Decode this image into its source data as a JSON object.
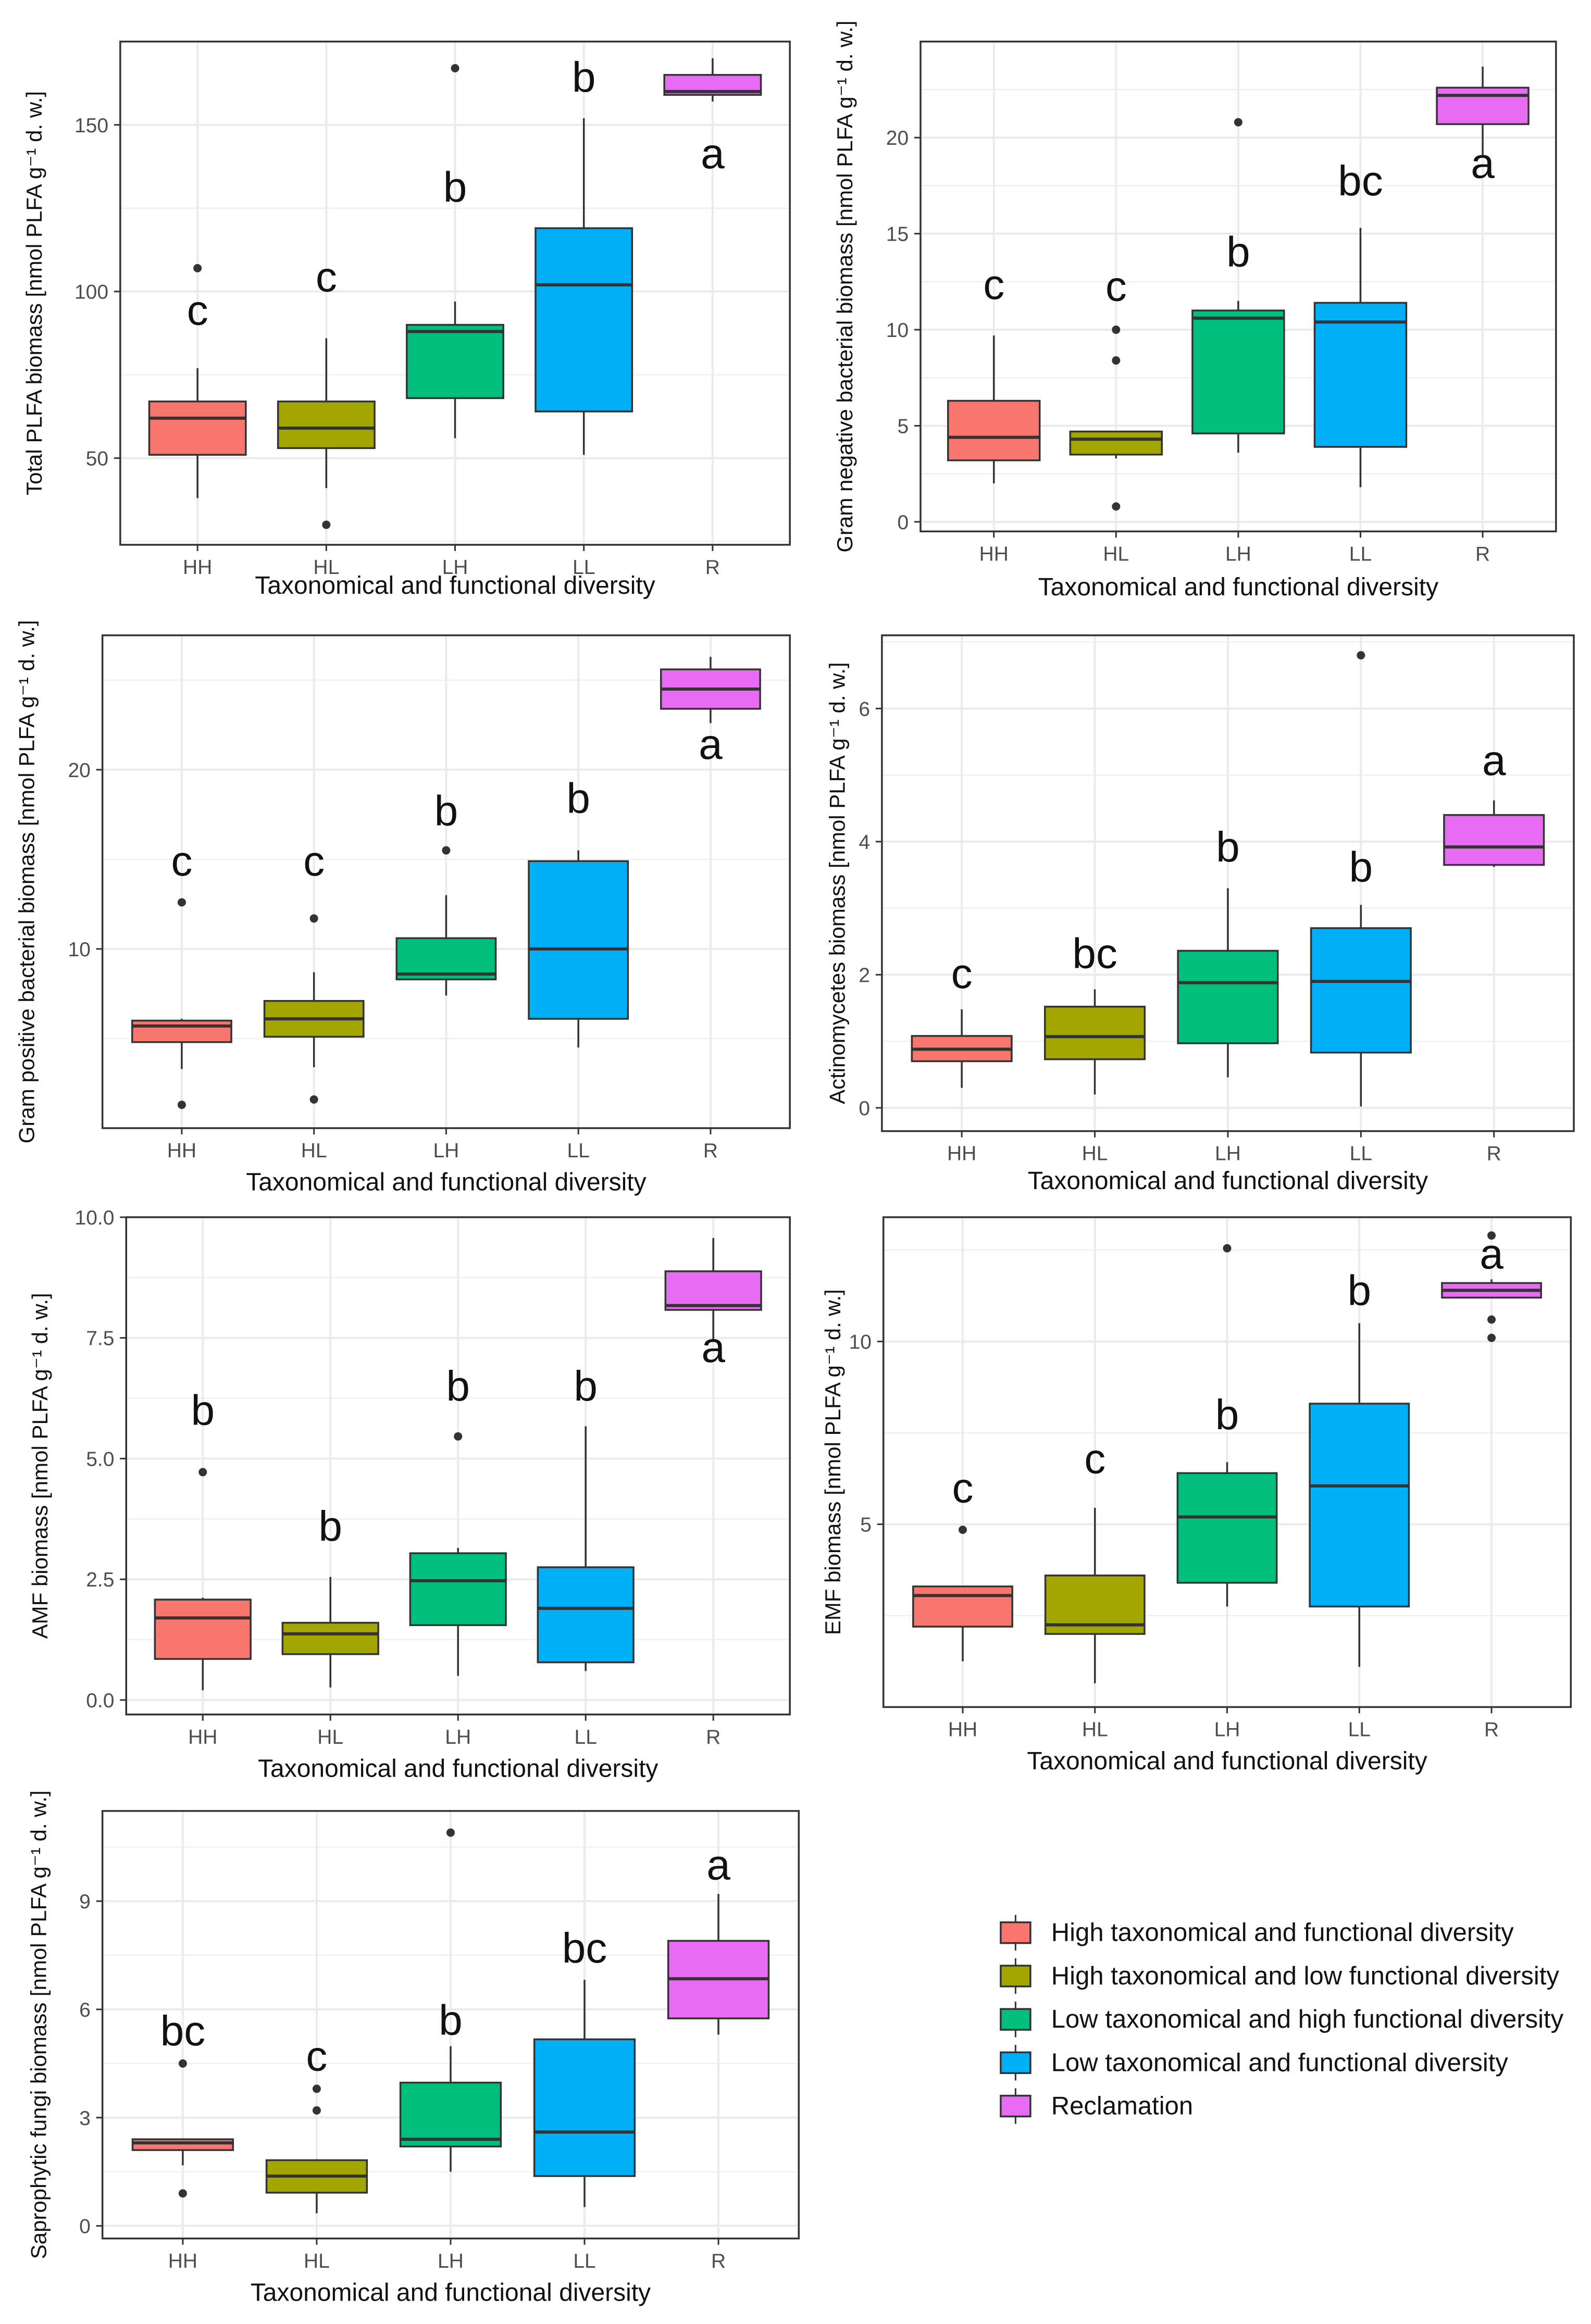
{
  "x_axis_title": "Taxonomical and functional diversity",
  "categories": [
    "HH",
    "HL",
    "LH",
    "LL",
    "R"
  ],
  "group_colors": [
    "#f8766d",
    "#a3a500",
    "#00bf7d",
    "#00b0f6",
    "#e76bf3"
  ],
  "legend": {
    "items": [
      "High taxonomical and functional diversity",
      "High taxonomical and low functional diversity",
      "Low taxonomical and high functional diversity",
      "Low taxonomical and functional diversity",
      "Reclamation"
    ]
  },
  "chart_data": [
    {
      "type": "box",
      "ylabel": "Total PLFA biomass [nmol PLFA g⁻¹ d. w.]",
      "xlabel": "Taxonomical and functional diversity",
      "ylim": [
        24,
        175
      ],
      "yticks": [
        50,
        100,
        150
      ],
      "tick_labels": [
        "50",
        "100",
        "150"
      ],
      "boxes": [
        {
          "category": "HH",
          "min": 38,
          "q1": 51,
          "median": 62,
          "q3": 67,
          "max": 77,
          "outliers": [
            107
          ],
          "letter": "c",
          "letter_y": 90
        },
        {
          "category": "HL",
          "min": 41,
          "q1": 53,
          "median": 59,
          "q3": 67,
          "max": 86,
          "outliers": [
            30
          ],
          "letter": "c",
          "letter_y": 100
        },
        {
          "category": "LH",
          "min": 56,
          "q1": 68,
          "median": 88,
          "q3": 90,
          "max": 97,
          "outliers": [
            167
          ],
          "letter": "b",
          "letter_y": 127
        },
        {
          "category": "LL",
          "min": 51,
          "q1": 64,
          "median": 102,
          "q3": 119,
          "max": 152,
          "outliers": [],
          "letter": "b",
          "letter_y": 160
        },
        {
          "category": "R",
          "min": 157,
          "q1": 159,
          "median": 160,
          "q3": 165,
          "max": 170,
          "outliers": [],
          "letter": "a",
          "letter_y": 137
        }
      ]
    },
    {
      "type": "box",
      "ylabel": "Gram negative bacterial biomass [nmol PLFA g⁻¹ d. w.]",
      "xlabel": "Taxonomical and functional diversity",
      "ylim": [
        -0.5,
        25
      ],
      "yticks": [
        0,
        5,
        10,
        15,
        20
      ],
      "tick_labels": [
        "0",
        "5",
        "10",
        "15",
        "20"
      ],
      "boxes": [
        {
          "category": "HH",
          "min": 2,
          "q1": 3.2,
          "median": 4.4,
          "q3": 6.3,
          "max": 9.7,
          "outliers": [],
          "letter": "c",
          "letter_y": 11.6
        },
        {
          "category": "HL",
          "min": 3.3,
          "q1": 3.5,
          "median": 4.3,
          "q3": 4.7,
          "max": 4.7,
          "outliers": [
            0.8,
            8.4,
            10
          ],
          "letter": "c",
          "letter_y": 11.5
        },
        {
          "category": "LH",
          "min": 3.6,
          "q1": 4.6,
          "median": 10.6,
          "q3": 11,
          "max": 11.5,
          "outliers": [
            20.8
          ],
          "letter": "b",
          "letter_y": 13.3
        },
        {
          "category": "LL",
          "min": 1.8,
          "q1": 3.9,
          "median": 10.4,
          "q3": 11.4,
          "max": 15.3,
          "outliers": [],
          "letter": "bc",
          "letter_y": 17
        },
        {
          "category": "R",
          "min": 19.1,
          "q1": 20.7,
          "median": 22.2,
          "q3": 22.6,
          "max": 23.7,
          "outliers": [],
          "letter": "a",
          "letter_y": 17.9
        }
      ]
    },
    {
      "type": "box",
      "ylabel": "Gram positive bacterial biomass [nmol PLFA g⁻¹ d. w.]",
      "xlabel": "Taxonomical and functional diversity",
      "ylim": [
        0,
        27.5
      ],
      "yticks": [
        10,
        20
      ],
      "tick_labels": [
        "10",
        "20"
      ],
      "boxes": [
        {
          "category": "HH",
          "min": 3.3,
          "q1": 4.8,
          "median": 5.7,
          "q3": 6,
          "max": 6.1,
          "outliers": [
            1.3,
            12.6
          ],
          "letter": "c",
          "letter_y": 14.1
        },
        {
          "category": "HL",
          "min": 3.4,
          "q1": 5.1,
          "median": 6.1,
          "q3": 7.1,
          "max": 8.7,
          "outliers": [
            1.6,
            11.7
          ],
          "letter": "c",
          "letter_y": 14.1
        },
        {
          "category": "LH",
          "min": 7.4,
          "q1": 8.3,
          "median": 8.6,
          "q3": 10.6,
          "max": 13,
          "outliers": [
            15.5
          ],
          "letter": "b",
          "letter_y": 16.9
        },
        {
          "category": "LL",
          "min": 4.5,
          "q1": 6.1,
          "median": 10,
          "q3": 14.9,
          "max": 15.5,
          "outliers": [],
          "letter": "b",
          "letter_y": 17.6
        },
        {
          "category": "R",
          "min": 22.6,
          "q1": 23.4,
          "median": 24.5,
          "q3": 25.6,
          "max": 26.3,
          "outliers": [],
          "letter": "a",
          "letter_y": 20.6
        }
      ]
    },
    {
      "type": "box",
      "ylabel": "Actinomycetes biomass [nmol PLFA g⁻¹ d. w.]",
      "xlabel": "Taxonomical and functional diversity",
      "ylim": [
        -0.35,
        7.1
      ],
      "yticks": [
        0,
        2,
        4,
        6
      ],
      "tick_labels": [
        "0",
        "2",
        "4",
        "6"
      ],
      "boxes": [
        {
          "category": "HH",
          "min": 0.3,
          "q1": 0.7,
          "median": 0.88,
          "q3": 1.08,
          "max": 1.48,
          "outliers": [],
          "letter": "c",
          "letter_y": 1.8
        },
        {
          "category": "HL",
          "min": 0.2,
          "q1": 0.73,
          "median": 1.07,
          "q3": 1.52,
          "max": 1.78,
          "outliers": [],
          "letter": "bc",
          "letter_y": 2.1
        },
        {
          "category": "LH",
          "min": 0.46,
          "q1": 0.97,
          "median": 1.88,
          "q3": 2.36,
          "max": 3.3,
          "outliers": [],
          "letter": "b",
          "letter_y": 3.7
        },
        {
          "category": "LL",
          "min": 0.02,
          "q1": 0.83,
          "median": 1.9,
          "q3": 2.7,
          "max": 3.05,
          "outliers": [
            6.8
          ],
          "letter": "b",
          "letter_y": 3.4
        },
        {
          "category": "R",
          "min": 3.62,
          "q1": 3.65,
          "median": 3.92,
          "q3": 4.4,
          "max": 4.62,
          "outliers": [],
          "letter": "a",
          "letter_y": 5.0
        }
      ]
    },
    {
      "type": "box",
      "ylabel": "AMF biomass [nmol PLFA g⁻¹ d. w.]",
      "xlabel": "Taxonomical and functional diversity",
      "ylim": [
        -0.3,
        10.0
      ],
      "yticks": [
        0,
        2.5,
        5,
        7.5,
        10
      ],
      "tick_labels": [
        "0.0",
        "2.5",
        "5.0",
        "7.5",
        "10.0"
      ],
      "boxes": [
        {
          "category": "HH",
          "min": 0.2,
          "q1": 0.85,
          "median": 1.7,
          "q3": 2.08,
          "max": 2.12,
          "outliers": [
            4.72
          ],
          "letter": "b",
          "letter_y": 5.7
        },
        {
          "category": "HL",
          "min": 0.26,
          "q1": 0.95,
          "median": 1.37,
          "q3": 1.6,
          "max": 2.55,
          "outliers": [],
          "letter": "b",
          "letter_y": 3.3
        },
        {
          "category": "LH",
          "min": 0.5,
          "q1": 1.55,
          "median": 2.47,
          "q3": 3.04,
          "max": 3.15,
          "outliers": [
            5.46
          ],
          "letter": "b",
          "letter_y": 6.2
        },
        {
          "category": "LL",
          "min": 0.6,
          "q1": 0.78,
          "median": 1.9,
          "q3": 2.75,
          "max": 5.67,
          "outliers": [],
          "letter": "b",
          "letter_y": 6.2
        },
        {
          "category": "R",
          "min": 7.43,
          "q1": 8.08,
          "median": 8.17,
          "q3": 8.88,
          "max": 9.57,
          "outliers": [],
          "letter": "a",
          "letter_y": 7.0
        }
      ]
    },
    {
      "type": "box",
      "ylabel": "EMF biomass [nmol PLFA g⁻¹ d. w.]",
      "xlabel": "Taxonomical and functional diversity",
      "ylim": [
        0,
        13.4
      ],
      "yticks": [
        5,
        10
      ],
      "tick_labels": [
        "5",
        "10"
      ],
      "boxes": [
        {
          "category": "HH",
          "min": 1.25,
          "q1": 2.2,
          "median": 3.05,
          "q3": 3.3,
          "max": 3.3,
          "outliers": [
            4.85
          ],
          "letter": "c",
          "letter_y": 5.6
        },
        {
          "category": "HL",
          "min": 0.65,
          "q1": 2.0,
          "median": 2.25,
          "q3": 3.6,
          "max": 5.45,
          "outliers": [],
          "letter": "c",
          "letter_y": 6.4
        },
        {
          "category": "LH",
          "min": 2.75,
          "q1": 3.4,
          "median": 5.2,
          "q3": 6.4,
          "max": 6.7,
          "outliers": [
            12.55
          ],
          "letter": "b",
          "letter_y": 7.6
        },
        {
          "category": "LL",
          "min": 1.1,
          "q1": 2.75,
          "median": 6.05,
          "q3": 8.3,
          "max": 10.5,
          "outliers": [],
          "letter": "b",
          "letter_y": 11.0
        },
        {
          "category": "R",
          "min": 11.2,
          "q1": 11.2,
          "median": 11.4,
          "q3": 11.6,
          "max": 11.7,
          "outliers": [
            10.1,
            10.6,
            12.9
          ],
          "letter": "a",
          "letter_y": 12.0
        }
      ]
    },
    {
      "type": "box",
      "ylabel": "Saprophytic fungi biomass [nmol PLFA g⁻¹ d. w.]",
      "xlabel": "Taxonomical and functional diversity",
      "ylim": [
        -0.35,
        11.5
      ],
      "yticks": [
        0,
        3,
        6,
        9
      ],
      "tick_labels": [
        "0",
        "3",
        "6",
        "9"
      ],
      "boxes": [
        {
          "category": "HH",
          "min": 1.68,
          "q1": 2.1,
          "median": 2.3,
          "q3": 2.4,
          "max": 2.4,
          "outliers": [
            0.9,
            4.5
          ],
          "letter": "bc",
          "letter_y": 5.0
        },
        {
          "category": "HL",
          "min": 0.35,
          "q1": 0.92,
          "median": 1.38,
          "q3": 1.82,
          "max": 1.85,
          "outliers": [
            3.2,
            3.8
          ],
          "letter": "c",
          "letter_y": 4.3
        },
        {
          "category": "LH",
          "min": 1.5,
          "q1": 2.2,
          "median": 2.4,
          "q3": 3.97,
          "max": 4.98,
          "outliers": [
            10.9
          ],
          "letter": "b",
          "letter_y": 5.3
        },
        {
          "category": "LL",
          "min": 0.52,
          "q1": 1.38,
          "median": 2.6,
          "q3": 5.17,
          "max": 6.82,
          "outliers": [],
          "letter": "bc",
          "letter_y": 7.3
        },
        {
          "category": "R",
          "min": 5.3,
          "q1": 5.75,
          "median": 6.85,
          "q3": 7.9,
          "max": 9.2,
          "outliers": [],
          "letter": "a",
          "letter_y": 9.6
        }
      ]
    }
  ]
}
